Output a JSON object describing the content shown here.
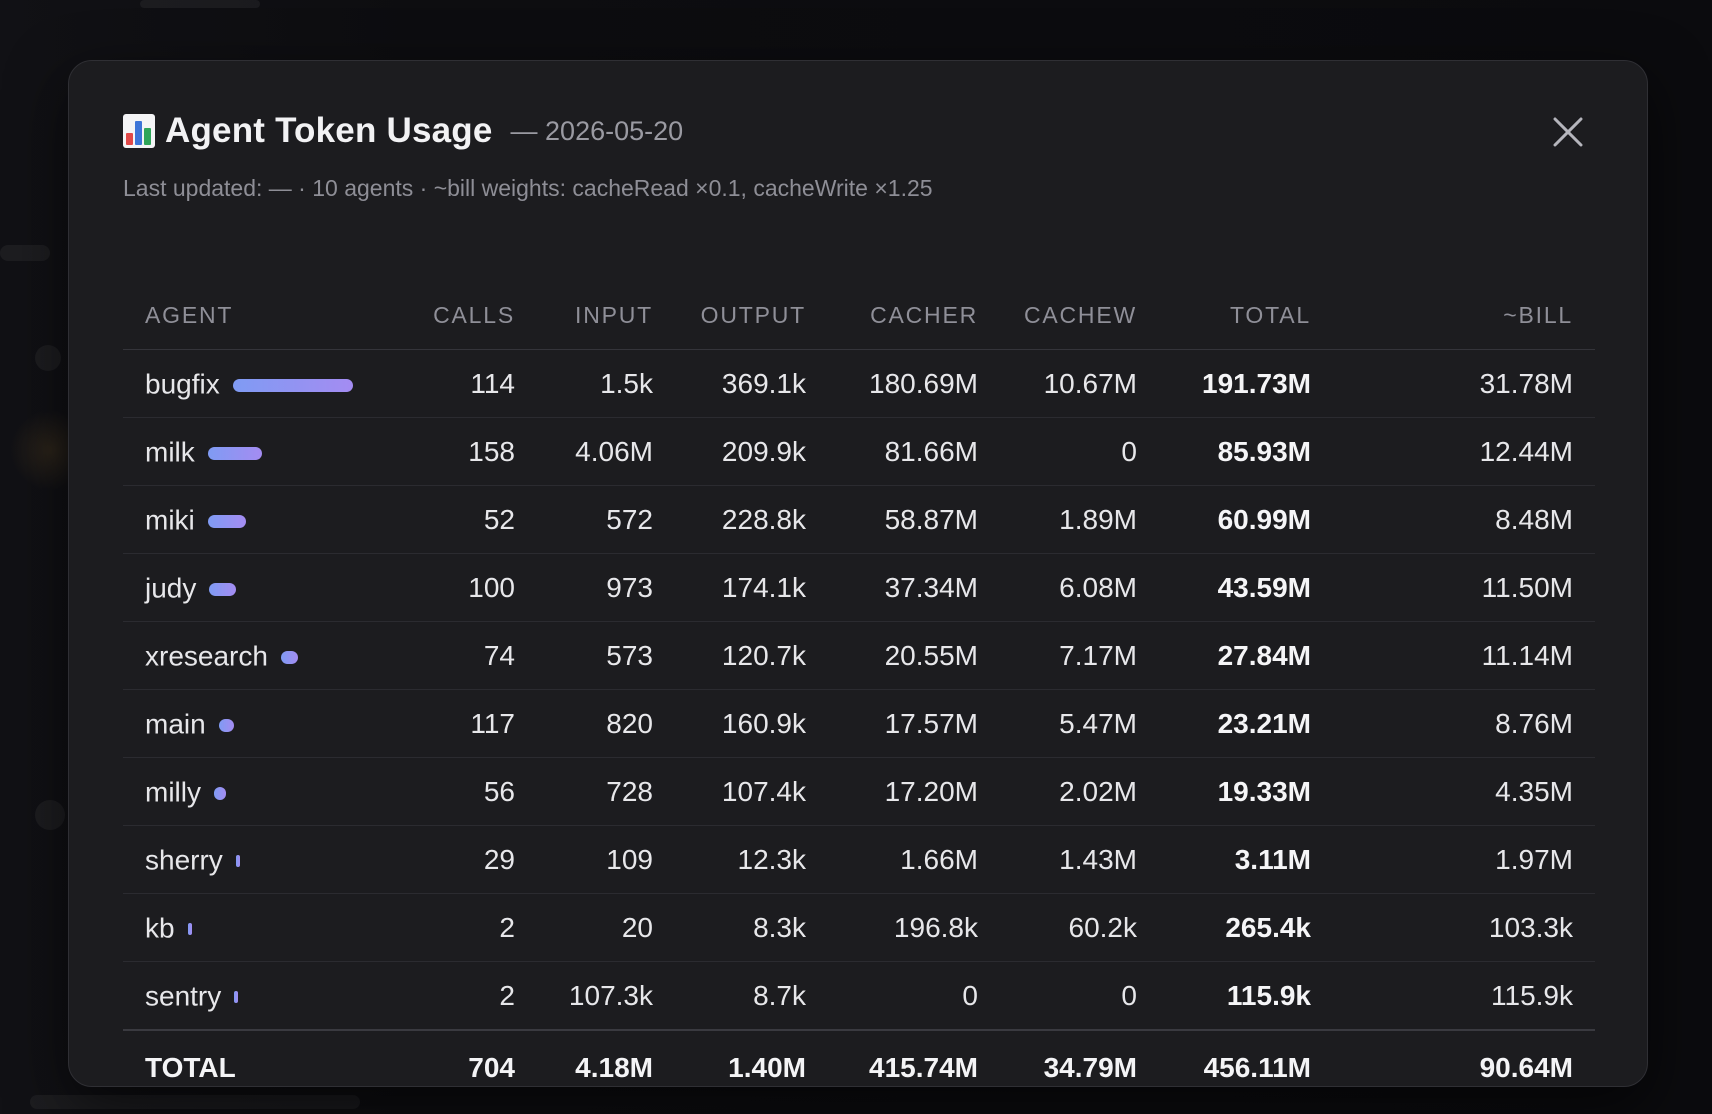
{
  "modal": {
    "title": "Agent Token Usage",
    "date": "— 2026-05-20",
    "subtitle": "Last updated: — · 10 agents · ~bill weights: cacheRead ×0.1, cacheWrite ×1.25",
    "icons": {
      "title": "bar-chart-icon",
      "close": "close-icon"
    }
  },
  "table": {
    "headers": [
      "AGENT",
      "CALLS",
      "INPUT",
      "OUTPUT",
      "CACHER",
      "CACHEW",
      "TOTAL",
      "~BILL"
    ],
    "rows": [
      {
        "agent": "bugfix",
        "usage_share": 1.0,
        "calls": "114",
        "input": "1.5k",
        "output": "369.1k",
        "cacher": "180.69M",
        "cachew": "10.67M",
        "total": "191.73M",
        "bill": "31.78M"
      },
      {
        "agent": "milk",
        "usage_share": 0.448,
        "calls": "158",
        "input": "4.06M",
        "output": "209.9k",
        "cacher": "81.66M",
        "cachew": "0",
        "total": "85.93M",
        "bill": "12.44M"
      },
      {
        "agent": "miki",
        "usage_share": 0.318,
        "calls": "52",
        "input": "572",
        "output": "228.8k",
        "cacher": "58.87M",
        "cachew": "1.89M",
        "total": "60.99M",
        "bill": "8.48M"
      },
      {
        "agent": "judy",
        "usage_share": 0.227,
        "calls": "100",
        "input": "973",
        "output": "174.1k",
        "cacher": "37.34M",
        "cachew": "6.08M",
        "total": "43.59M",
        "bill": "11.50M"
      },
      {
        "agent": "xresearch",
        "usage_share": 0.145,
        "calls": "74",
        "input": "573",
        "output": "120.7k",
        "cacher": "20.55M",
        "cachew": "7.17M",
        "total": "27.84M",
        "bill": "11.14M"
      },
      {
        "agent": "main",
        "usage_share": 0.121,
        "calls": "117",
        "input": "820",
        "output": "160.9k",
        "cacher": "17.57M",
        "cachew": "5.47M",
        "total": "23.21M",
        "bill": "8.76M"
      },
      {
        "agent": "milly",
        "usage_share": 0.101,
        "calls": "56",
        "input": "728",
        "output": "107.4k",
        "cacher": "17.20M",
        "cachew": "2.02M",
        "total": "19.33M",
        "bill": "4.35M"
      },
      {
        "agent": "sherry",
        "usage_share": 0.016,
        "calls": "29",
        "input": "109",
        "output": "12.3k",
        "cacher": "1.66M",
        "cachew": "1.43M",
        "total": "3.11M",
        "bill": "1.97M"
      },
      {
        "agent": "kb",
        "usage_share": 0.0014,
        "calls": "2",
        "input": "20",
        "output": "8.3k",
        "cacher": "196.8k",
        "cachew": "60.2k",
        "total": "265.4k",
        "bill": "103.3k"
      },
      {
        "agent": "sentry",
        "usage_share": 0.0006,
        "calls": "2",
        "input": "107.3k",
        "output": "8.7k",
        "cacher": "0",
        "cachew": "0",
        "total": "115.9k",
        "bill": "115.9k"
      }
    ],
    "totals": {
      "label": "TOTAL",
      "calls": "704",
      "input": "4.18M",
      "output": "1.40M",
      "cacher": "415.74M",
      "cachew": "34.79M",
      "total": "456.11M",
      "bill": "90.64M"
    }
  },
  "colors": {
    "bar_start": "#7f9bf3",
    "bar_end": "#a48cf2",
    "modal_bg": "#1c1c1f",
    "text": "#e7e7ea",
    "muted": "#8f8f98"
  }
}
